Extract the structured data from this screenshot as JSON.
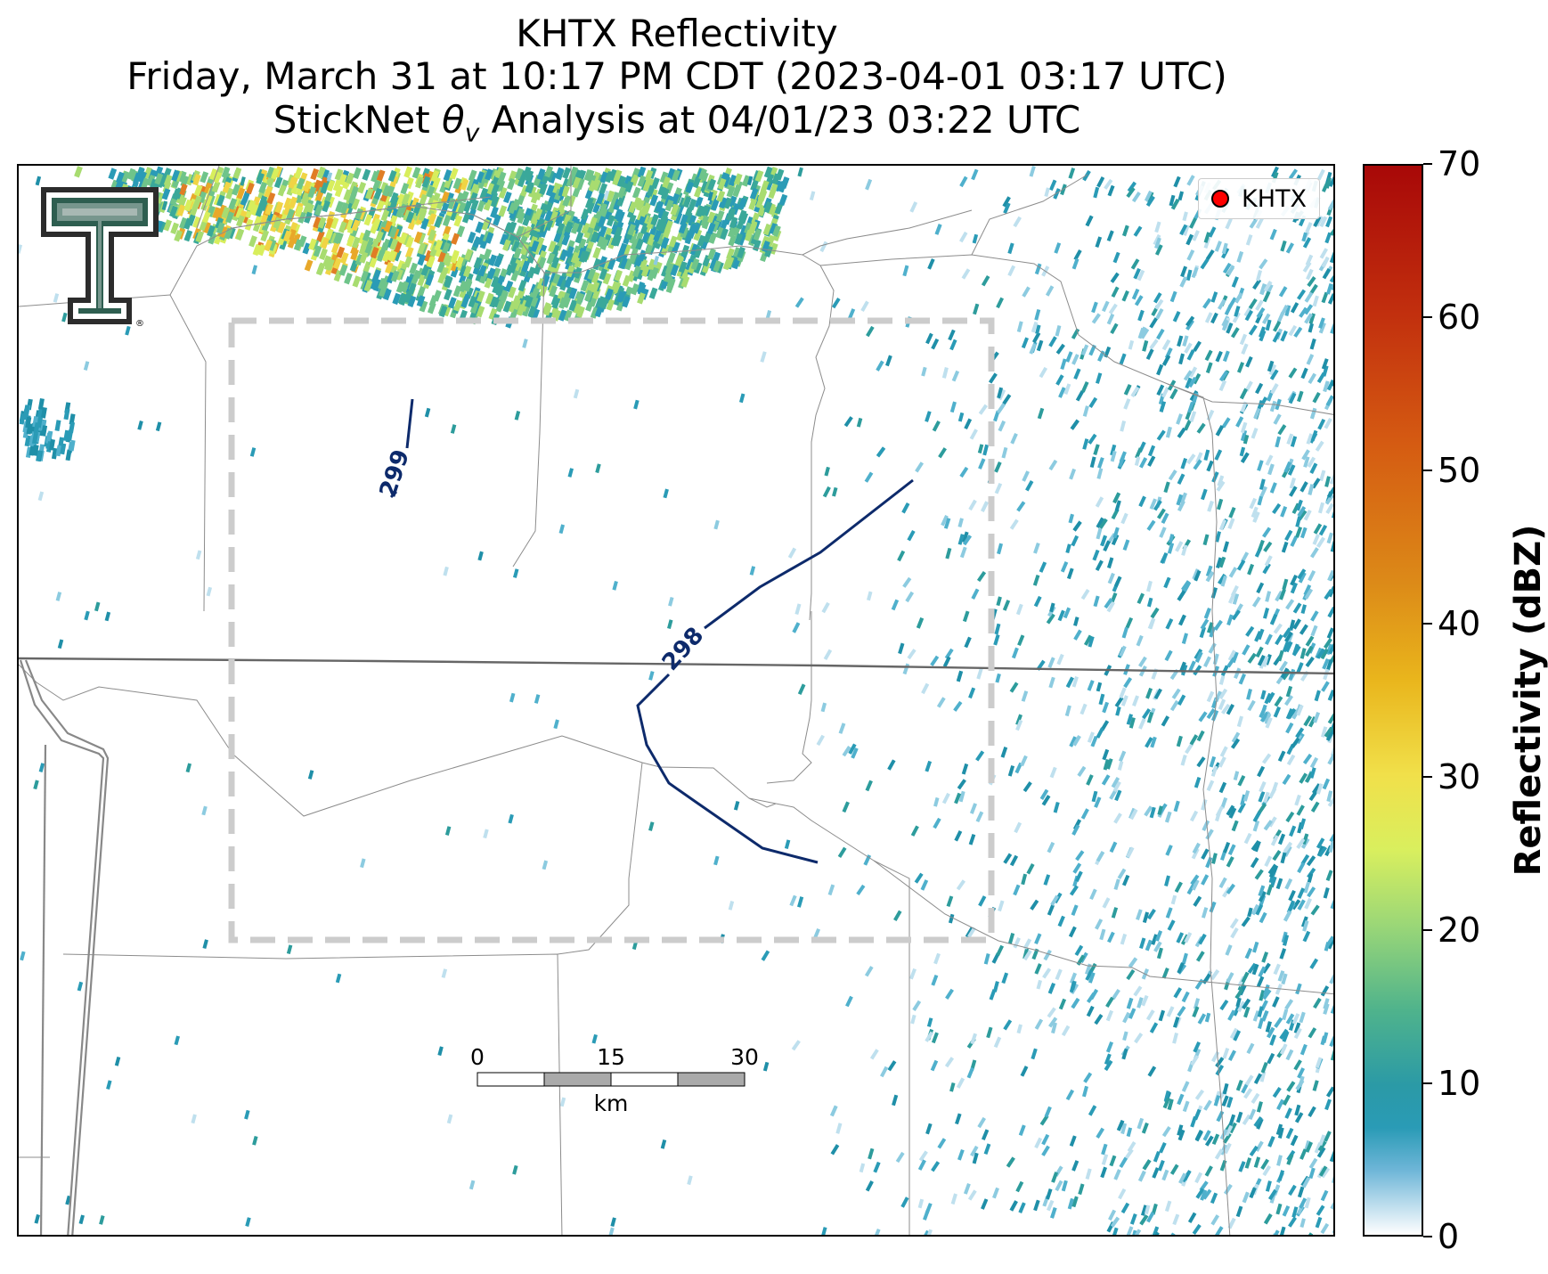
{
  "title": {
    "line1": "KHTX Reflectivity",
    "line2": "Friday, March 31 at 10:17 PM CDT (2023-04-01 03:17 UTC)",
    "line3_prefix": "StickNet ",
    "line3_theta": "θ",
    "line3_sub": "v",
    "line3_suffix": " Analysis at 04/01/23 03:22 UTC"
  },
  "legend": {
    "label": "KHTX",
    "marker_color": "#ff0000"
  },
  "contours": [
    {
      "label": "299"
    },
    {
      "label": "298"
    }
  ],
  "contour_color": "#0d2a6b",
  "analysis_box_color": "#cccccc",
  "scale_bar": {
    "ticks": [
      "0",
      "15",
      "30"
    ],
    "unit": "km"
  },
  "colorbar": {
    "label": "Reflectivity (dBZ)",
    "min": 0,
    "max": 70,
    "ticks": [
      "0",
      "10",
      "20",
      "30",
      "40",
      "50",
      "60",
      "70"
    ]
  },
  "logo": {
    "name": "Texas Tech Double T",
    "mark": "®"
  }
}
